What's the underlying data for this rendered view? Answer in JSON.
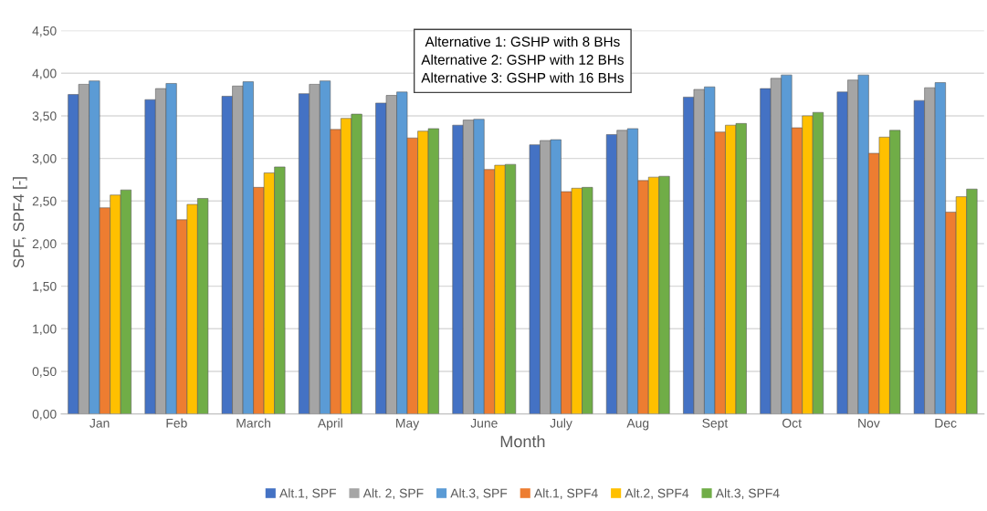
{
  "chart_data": {
    "type": "bar",
    "xlabel": "Month",
    "ylabel": "SPF, SPF4 [-]",
    "annotations": [
      "Alternative 1: GSHP with 8 BHs\nAlternative 2: GSHP with 12 BHs\nAlternative 3: GSHP with 16 BHs"
    ],
    "categories": [
      "Jan",
      "Feb",
      "March",
      "April",
      "May",
      "June",
      "July",
      "Aug",
      "Sept",
      "Oct",
      "Nov",
      "Dec"
    ],
    "series": [
      {
        "name": "Alt.1, SPF",
        "color": "#4472c4",
        "values": [
          3.75,
          3.69,
          3.73,
          3.76,
          3.65,
          3.39,
          3.16,
          3.28,
          3.72,
          3.82,
          3.78,
          3.68
        ]
      },
      {
        "name": "Alt. 2, SPF",
        "color": "#a5a5a5",
        "values": [
          3.87,
          3.82,
          3.85,
          3.87,
          3.74,
          3.45,
          3.21,
          3.33,
          3.81,
          3.94,
          3.92,
          3.83
        ]
      },
      {
        "name": "Alt.3, SPF",
        "color": "#5b9bd5",
        "values": [
          3.91,
          3.88,
          3.9,
          3.91,
          3.78,
          3.46,
          3.22,
          3.35,
          3.84,
          3.98,
          3.98,
          3.89
        ]
      },
      {
        "name": "Alt.1, SPF4",
        "color": "#ed7d31",
        "values": [
          2.42,
          2.28,
          2.66,
          3.34,
          3.24,
          2.87,
          2.61,
          2.74,
          3.31,
          3.36,
          3.06,
          2.37
        ]
      },
      {
        "name": "Alt.2, SPF4",
        "color": "#ffc000",
        "values": [
          2.57,
          2.46,
          2.83,
          3.47,
          3.32,
          2.92,
          2.65,
          2.78,
          3.39,
          3.5,
          3.25,
          2.55
        ]
      },
      {
        "name": "Alt.3, SPF4",
        "color": "#70ad47",
        "values": [
          2.63,
          2.53,
          2.9,
          3.52,
          3.35,
          2.93,
          2.66,
          2.79,
          3.41,
          3.54,
          3.33,
          2.64
        ]
      }
    ],
    "ylim": [
      0,
      4.5
    ],
    "yticks": [
      {
        "value": 0,
        "label": "0,00"
      },
      {
        "value": 0.5,
        "label": "0,50"
      },
      {
        "value": 1,
        "label": "1,00"
      },
      {
        "value": 1.5,
        "label": "1,50"
      },
      {
        "value": 2,
        "label": "2,00"
      },
      {
        "value": 2.5,
        "label": "2,50"
      },
      {
        "value": 3,
        "label": "3,00"
      },
      {
        "value": 3.5,
        "label": "3,50"
      },
      {
        "value": 4,
        "label": "4,00"
      },
      {
        "value": 4.5,
        "label": "4,50"
      }
    ],
    "grid": "y",
    "legend": "bottom"
  }
}
